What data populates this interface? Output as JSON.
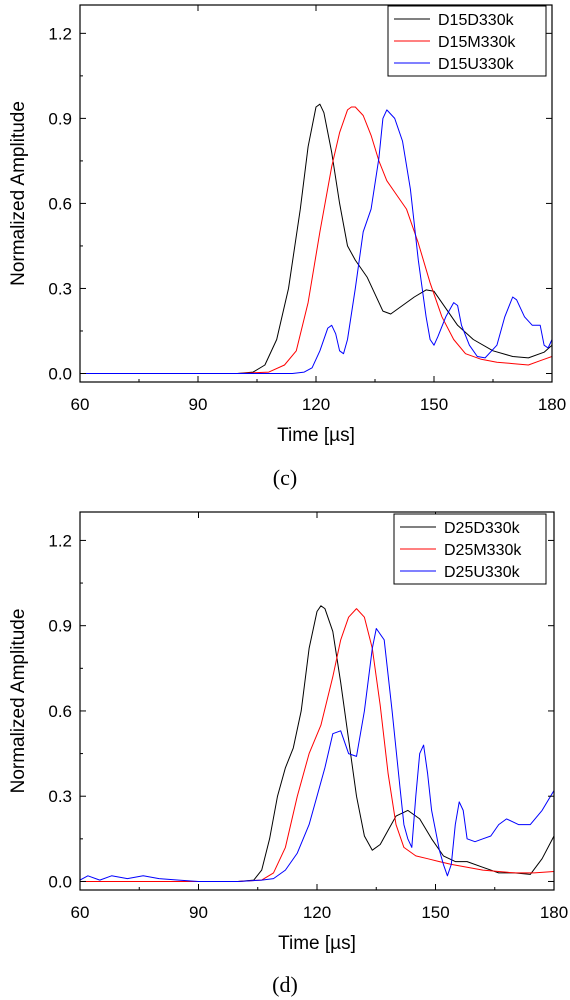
{
  "chart_data": [
    {
      "type": "line",
      "panel_label": "(c)",
      "xlabel": "Time [µs]",
      "ylabel": "Normalized Amplitude",
      "xlim": [
        60,
        180
      ],
      "ylim": [
        -0.03,
        1.3
      ],
      "xticks": [
        60,
        90,
        120,
        150,
        180
      ],
      "yticks": [
        0.0,
        0.3,
        0.6,
        0.9,
        1.2
      ],
      "ytick_labels": [
        "0.0",
        "0.3",
        "0.6",
        "0.9",
        "1.2"
      ],
      "legend_position": "top-right",
      "grid": false,
      "series": [
        {
          "name": "D15D330k",
          "color": "#000000",
          "points": [
            [
              60,
              0.0
            ],
            [
              80,
              0.0
            ],
            [
              100,
              0.0
            ],
            [
              104,
              0.005
            ],
            [
              107,
              0.03
            ],
            [
              110,
              0.12
            ],
            [
              113,
              0.3
            ],
            [
              116,
              0.58
            ],
            [
              118,
              0.8
            ],
            [
              120,
              0.94
            ],
            [
              121,
              0.95
            ],
            [
              122,
              0.92
            ],
            [
              124,
              0.78
            ],
            [
              126,
              0.6
            ],
            [
              128,
              0.45
            ],
            [
              130,
              0.4
            ],
            [
              133,
              0.34
            ],
            [
              135,
              0.28
            ],
            [
              137,
              0.22
            ],
            [
              139,
              0.21
            ],
            [
              142,
              0.24
            ],
            [
              145,
              0.27
            ],
            [
              148,
              0.295
            ],
            [
              150,
              0.29
            ],
            [
              153,
              0.23
            ],
            [
              156,
              0.17
            ],
            [
              160,
              0.12
            ],
            [
              165,
              0.08
            ],
            [
              170,
              0.06
            ],
            [
              174,
              0.055
            ],
            [
              178,
              0.075
            ],
            [
              180,
              0.1
            ]
          ]
        },
        {
          "name": "D15M330k",
          "color": "#ff0000",
          "points": [
            [
              60,
              0.0
            ],
            [
              80,
              0.0
            ],
            [
              100,
              0.0
            ],
            [
              108,
              0.005
            ],
            [
              112,
              0.03
            ],
            [
              115,
              0.08
            ],
            [
              118,
              0.25
            ],
            [
              121,
              0.5
            ],
            [
              124,
              0.73
            ],
            [
              126,
              0.85
            ],
            [
              128,
              0.93
            ],
            [
              129,
              0.94
            ],
            [
              130,
              0.94
            ],
            [
              132,
              0.91
            ],
            [
              134,
              0.84
            ],
            [
              136,
              0.75
            ],
            [
              138,
              0.68
            ],
            [
              140,
              0.64
            ],
            [
              143,
              0.58
            ],
            [
              146,
              0.46
            ],
            [
              149,
              0.32
            ],
            [
              152,
              0.2
            ],
            [
              155,
              0.12
            ],
            [
              158,
              0.07
            ],
            [
              162,
              0.05
            ],
            [
              166,
              0.04
            ],
            [
              170,
              0.035
            ],
            [
              174,
              0.03
            ],
            [
              177,
              0.045
            ],
            [
              180,
              0.06
            ]
          ]
        },
        {
          "name": "D15U330k",
          "color": "#0000ff",
          "points": [
            [
              60,
              0.0
            ],
            [
              100,
              0.0
            ],
            [
              114,
              0.0
            ],
            [
              117,
              0.005
            ],
            [
              119,
              0.02
            ],
            [
              121,
              0.08
            ],
            [
              123,
              0.16
            ],
            [
              124,
              0.17
            ],
            [
              125,
              0.14
            ],
            [
              126,
              0.08
            ],
            [
              127,
              0.07
            ],
            [
              128,
              0.12
            ],
            [
              130,
              0.3
            ],
            [
              132,
              0.5
            ],
            [
              134,
              0.58
            ],
            [
              136,
              0.76
            ],
            [
              137,
              0.9
            ],
            [
              138,
              0.93
            ],
            [
              140,
              0.9
            ],
            [
              142,
              0.82
            ],
            [
              144,
              0.65
            ],
            [
              146,
              0.4
            ],
            [
              148,
              0.2
            ],
            [
              149,
              0.12
            ],
            [
              150,
              0.1
            ],
            [
              151,
              0.13
            ],
            [
              153,
              0.2
            ],
            [
              155,
              0.25
            ],
            [
              156,
              0.24
            ],
            [
              157,
              0.17
            ],
            [
              159,
              0.1
            ],
            [
              161,
              0.06
            ],
            [
              163,
              0.055
            ],
            [
              166,
              0.1
            ],
            [
              168,
              0.2
            ],
            [
              170,
              0.27
            ],
            [
              171,
              0.26
            ],
            [
              173,
              0.2
            ],
            [
              175,
              0.17
            ],
            [
              177,
              0.17
            ],
            [
              178,
              0.1
            ],
            [
              179,
              0.09
            ],
            [
              180,
              0.12
            ]
          ]
        }
      ]
    },
    {
      "type": "line",
      "panel_label": "(d)",
      "xlabel": "Time [µs]",
      "ylabel": "Normalized Amplitude",
      "xlim": [
        60,
        180
      ],
      "ylim": [
        -0.03,
        1.3
      ],
      "xticks": [
        60,
        90,
        120,
        150,
        180
      ],
      "yticks": [
        0.0,
        0.3,
        0.6,
        0.9,
        1.2
      ],
      "ytick_labels": [
        "0.0",
        "0.3",
        "0.6",
        "0.9",
        "1.2"
      ],
      "legend_position": "top-right",
      "grid": false,
      "series": [
        {
          "name": "D25D330k",
          "color": "#000000",
          "points": [
            [
              60,
              0.0
            ],
            [
              80,
              0.0
            ],
            [
              100,
              0.0
            ],
            [
              104,
              0.005
            ],
            [
              106,
              0.04
            ],
            [
              108,
              0.15
            ],
            [
              110,
              0.3
            ],
            [
              112,
              0.4
            ],
            [
              114,
              0.47
            ],
            [
              116,
              0.6
            ],
            [
              118,
              0.82
            ],
            [
              120,
              0.95
            ],
            [
              121,
              0.97
            ],
            [
              122,
              0.96
            ],
            [
              124,
              0.88
            ],
            [
              126,
              0.7
            ],
            [
              128,
              0.5
            ],
            [
              130,
              0.3
            ],
            [
              132,
              0.16
            ],
            [
              134,
              0.11
            ],
            [
              136,
              0.13
            ],
            [
              138,
              0.18
            ],
            [
              140,
              0.23
            ],
            [
              143,
              0.25
            ],
            [
              146,
              0.22
            ],
            [
              149,
              0.15
            ],
            [
              152,
              0.09
            ],
            [
              155,
              0.07
            ],
            [
              158,
              0.07
            ],
            [
              162,
              0.05
            ],
            [
              166,
              0.03
            ],
            [
              170,
              0.03
            ],
            [
              174,
              0.025
            ],
            [
              177,
              0.08
            ],
            [
              180,
              0.16
            ]
          ]
        },
        {
          "name": "D25M330k",
          "color": "#ff0000",
          "points": [
            [
              60,
              0.0
            ],
            [
              80,
              0.0
            ],
            [
              100,
              0.0
            ],
            [
              106,
              0.005
            ],
            [
              109,
              0.03
            ],
            [
              112,
              0.12
            ],
            [
              115,
              0.3
            ],
            [
              118,
              0.45
            ],
            [
              121,
              0.55
            ],
            [
              124,
              0.72
            ],
            [
              126,
              0.85
            ],
            [
              128,
              0.93
            ],
            [
              130,
              0.96
            ],
            [
              132,
              0.93
            ],
            [
              134,
              0.82
            ],
            [
              136,
              0.62
            ],
            [
              138,
              0.38
            ],
            [
              140,
              0.2
            ],
            [
              142,
              0.12
            ],
            [
              145,
              0.09
            ],
            [
              148,
              0.08
            ],
            [
              151,
              0.07
            ],
            [
              154,
              0.06
            ],
            [
              158,
              0.05
            ],
            [
              162,
              0.04
            ],
            [
              166,
              0.035
            ],
            [
              170,
              0.03
            ],
            [
              175,
              0.03
            ],
            [
              180,
              0.035
            ]
          ]
        },
        {
          "name": "D25U330k",
          "color": "#0000ff",
          "points": [
            [
              60,
              0.005
            ],
            [
              62,
              0.02
            ],
            [
              65,
              0.005
            ],
            [
              68,
              0.02
            ],
            [
              72,
              0.01
            ],
            [
              76,
              0.02
            ],
            [
              80,
              0.01
            ],
            [
              85,
              0.005
            ],
            [
              90,
              0.0
            ],
            [
              100,
              0.0
            ],
            [
              106,
              0.005
            ],
            [
              109,
              0.01
            ],
            [
              112,
              0.04
            ],
            [
              115,
              0.1
            ],
            [
              118,
              0.2
            ],
            [
              120,
              0.3
            ],
            [
              122,
              0.4
            ],
            [
              124,
              0.52
            ],
            [
              126,
              0.53
            ],
            [
              128,
              0.45
            ],
            [
              130,
              0.44
            ],
            [
              132,
              0.6
            ],
            [
              134,
              0.82
            ],
            [
              135,
              0.89
            ],
            [
              137,
              0.85
            ],
            [
              139,
              0.6
            ],
            [
              141,
              0.33
            ],
            [
              142,
              0.2
            ],
            [
              143,
              0.15
            ],
            [
              144,
              0.12
            ],
            [
              145,
              0.3
            ],
            [
              146,
              0.45
            ],
            [
              147,
              0.48
            ],
            [
              148,
              0.38
            ],
            [
              149,
              0.25
            ],
            [
              151,
              0.11
            ],
            [
              152,
              0.06
            ],
            [
              153,
              0.02
            ],
            [
              154,
              0.06
            ],
            [
              155,
              0.2
            ],
            [
              156,
              0.28
            ],
            [
              157,
              0.25
            ],
            [
              158,
              0.15
            ],
            [
              160,
              0.14
            ],
            [
              162,
              0.15
            ],
            [
              164,
              0.16
            ],
            [
              166,
              0.2
            ],
            [
              168,
              0.22
            ],
            [
              171,
              0.2
            ],
            [
              174,
              0.2
            ],
            [
              177,
              0.25
            ],
            [
              180,
              0.32
            ]
          ]
        }
      ]
    }
  ]
}
